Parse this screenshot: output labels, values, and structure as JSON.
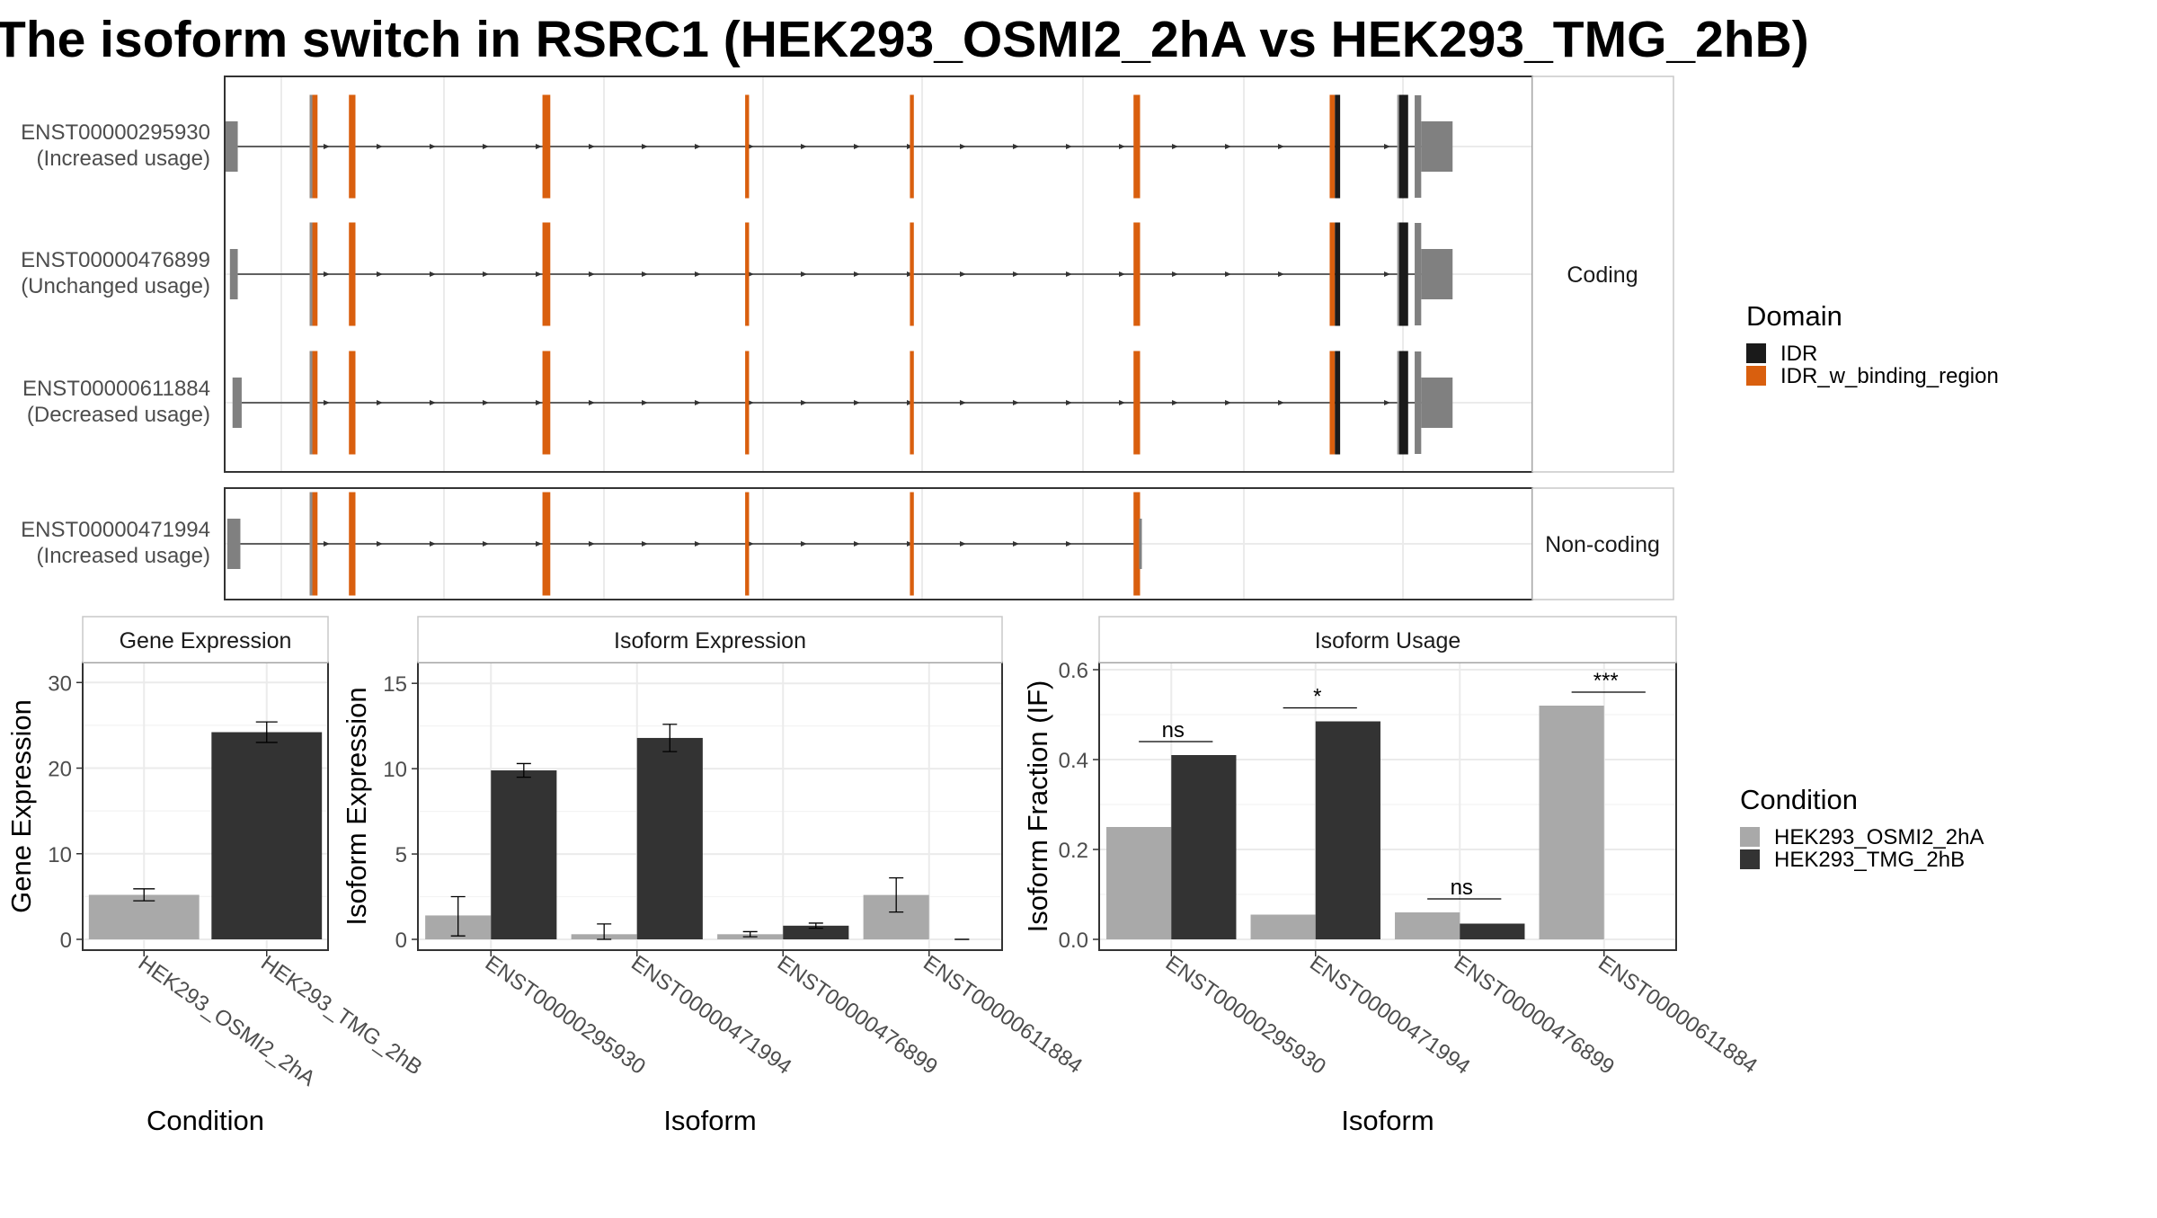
{
  "title": "The isoform switch in RSRC1 (HEK293_OSMI2_2hA vs HEK293_TMG_2hB)",
  "colors": {
    "idr": "#1a1a1a",
    "idr_binding": "#d95f0e",
    "exon_plain": "#808080",
    "cond_a": "#a9a9a9",
    "cond_b": "#333333",
    "grid": "#ebebeb",
    "strip_bg": "#ffffff"
  },
  "transcript_panel": {
    "facets": [
      {
        "label": "Coding",
        "transcripts": [
          {
            "id": "ENST00000295930",
            "usage": "(Increased usage)",
            "first_exon": [
              0.0,
              1.0
            ],
            "coding": true
          },
          {
            "id": "ENST00000476899",
            "usage": "(Unchanged usage)",
            "first_exon": [
              0.4,
              1.0
            ],
            "coding": true
          },
          {
            "id": "ENST00000611884",
            "usage": "(Decreased usage)",
            "first_exon": [
              0.6,
              1.3
            ],
            "coding": true
          }
        ]
      },
      {
        "label": "Non-coding",
        "transcripts": [
          {
            "id": "ENST00000471994",
            "usage": "(Increased usage)",
            "first_exon": [
              0.2,
              1.2
            ],
            "coding": false
          }
        ]
      }
    ],
    "exons": [
      {
        "start": 6.5,
        "end": 7.1,
        "domain": "IDR_w_binding_region"
      },
      {
        "start": 9.5,
        "end": 10.0,
        "domain": "IDR_w_binding_region"
      },
      {
        "start": 24.3,
        "end": 24.9,
        "domain": "IDR_w_binding_region"
      },
      {
        "start": 39.8,
        "end": 40.1,
        "domain": "IDR_w_binding_region"
      },
      {
        "start": 52.4,
        "end": 52.7,
        "domain": "IDR_w_binding_region"
      },
      {
        "start": 69.5,
        "end": 70.0,
        "domain": "IDR_w_binding_region"
      },
      {
        "start": 84.5,
        "end": 85.3,
        "domain": "IDR+IDR_w_binding_region"
      },
      {
        "start": 89.8,
        "end": 90.5,
        "domain": "IDR"
      }
    ],
    "last_exons": {
      "small": [
        91.0,
        91.5
      ],
      "tall": [
        91.5,
        93.9
      ]
    }
  },
  "legend_domain": {
    "title": "Domain",
    "items": [
      {
        "label": "IDR",
        "color": "#1a1a1a"
      },
      {
        "label": "IDR_w_binding_region",
        "color": "#d95f0e"
      }
    ]
  },
  "legend_condition": {
    "title": "Condition",
    "items": [
      {
        "label": "HEK293_OSMI2_2hA",
        "color": "#a9a9a9"
      },
      {
        "label": "HEK293_TMG_2hB",
        "color": "#333333"
      }
    ]
  },
  "chart_data": [
    {
      "type": "bar",
      "strip": "Gene Expression",
      "xlabel": "Condition",
      "ylabel": "Gene Expression",
      "ylim": [
        0,
        31.5
      ],
      "yticks": [
        0,
        10,
        20,
        30
      ],
      "categories": [
        "HEK293_OSMI2_2hA",
        "HEK293_TMG_2hB"
      ],
      "values": [
        5.2,
        24.2
      ],
      "err_low": [
        4.5,
        23.0
      ],
      "err_high": [
        5.9,
        25.4
      ],
      "colors": [
        "#a9a9a9",
        "#333333"
      ]
    },
    {
      "type": "bar",
      "strip": "Isoform Expression",
      "xlabel": "Isoform",
      "ylabel": "Isoform Expression",
      "ylim": [
        0,
        15.8
      ],
      "yticks": [
        0,
        5,
        10,
        15
      ],
      "categories": [
        "ENST00000295930",
        "ENST00000471994",
        "ENST00000476899",
        "ENST00000611884"
      ],
      "series": [
        {
          "name": "HEK293_OSMI2_2hA",
          "values": [
            1.4,
            0.3,
            0.3,
            2.6
          ],
          "err_low": [
            0.2,
            0.0,
            0.15,
            1.6
          ],
          "err_high": [
            2.5,
            0.9,
            0.45,
            3.6
          ]
        },
        {
          "name": "HEK293_TMG_2hB",
          "values": [
            9.9,
            11.8,
            0.8,
            0.0
          ],
          "err_low": [
            9.5,
            11.0,
            0.65,
            0.0
          ],
          "err_high": [
            10.3,
            12.6,
            0.95,
            0.0
          ]
        }
      ]
    },
    {
      "type": "bar",
      "strip": "Isoform Usage",
      "xlabel": "Isoform",
      "ylabel": "Isoform Fraction (IF)",
      "ylim": [
        0,
        0.6
      ],
      "yticks": [
        0.0,
        0.2,
        0.4,
        0.6
      ],
      "categories": [
        "ENST00000295930",
        "ENST00000471994",
        "ENST00000476899",
        "ENST00000611884"
      ],
      "series": [
        {
          "name": "HEK293_OSMI2_2hA",
          "values": [
            0.25,
            0.055,
            0.06,
            0.52
          ]
        },
        {
          "name": "HEK293_TMG_2hB",
          "values": [
            0.41,
            0.485,
            0.035,
            0.0
          ]
        }
      ],
      "significance": [
        {
          "label": "ns",
          "y": 0.44
        },
        {
          "label": "*",
          "y": 0.515
        },
        {
          "label": "ns",
          "y": 0.09
        },
        {
          "label": "***",
          "y": 0.55
        }
      ]
    }
  ]
}
